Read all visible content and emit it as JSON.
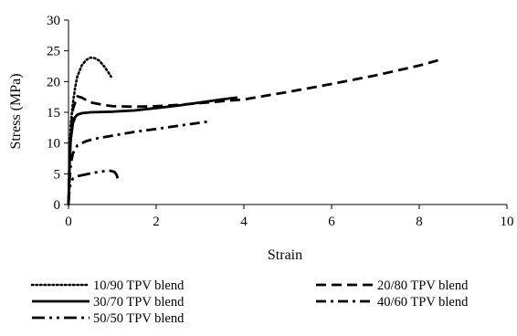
{
  "chart_data": {
    "type": "line",
    "xlabel": "Strain",
    "ylabel": "Stress (MPa)",
    "xlim": [
      0,
      10
    ],
    "ylim": [
      0,
      30
    ],
    "xticks": [
      0,
      2,
      4,
      6,
      8,
      10
    ],
    "yticks": [
      0,
      5,
      10,
      15,
      20,
      25,
      30
    ],
    "grid": false,
    "legend_position": "bottom",
    "series": [
      {
        "name": "10/90 TPV blend",
        "style": "dotted",
        "x": [
          0,
          0.02,
          0.05,
          0.1,
          0.15,
          0.2,
          0.3,
          0.4,
          0.5,
          0.6,
          0.7,
          0.8,
          0.9,
          0.97
        ],
        "y": [
          0,
          8,
          13,
          16.5,
          19,
          20.8,
          22.6,
          23.5,
          23.9,
          23.8,
          23.4,
          22.6,
          21.6,
          20.8
        ]
      },
      {
        "name": "20/80 TPV blend",
        "style": "dashed",
        "x": [
          0,
          0.02,
          0.05,
          0.1,
          0.2,
          0.3,
          0.5,
          0.8,
          1.0,
          1.5,
          2.0,
          2.5,
          3.0,
          3.5,
          4.0,
          5.0,
          6.0,
          7.0,
          8.0,
          8.5
        ],
        "y": [
          0,
          6,
          11,
          15.5,
          17.6,
          17.4,
          16.6,
          16.2,
          16.0,
          15.9,
          16.0,
          16.2,
          16.5,
          16.8,
          17.1,
          18.3,
          19.6,
          21.0,
          22.6,
          23.6
        ]
      },
      {
        "name": "30/70 TPV blend",
        "style": "solid",
        "x": [
          0,
          0.02,
          0.05,
          0.1,
          0.15,
          0.2,
          0.3,
          0.5,
          1.0,
          1.5,
          2.0,
          2.5,
          3.0,
          3.5,
          3.85
        ],
        "y": [
          0,
          6,
          10.5,
          13.2,
          14.2,
          14.6,
          14.85,
          15.0,
          15.1,
          15.3,
          15.7,
          16.1,
          16.6,
          17.1,
          17.4
        ]
      },
      {
        "name": "40/60 TPV blend",
        "style": "dash-dot",
        "x": [
          0,
          0.02,
          0.05,
          0.1,
          0.2,
          0.4,
          0.6,
          1.0,
          1.5,
          2.0,
          2.5,
          3.0,
          3.2
        ],
        "y": [
          0,
          3.5,
          6.5,
          8.3,
          9.6,
          10.3,
          10.7,
          11.2,
          11.8,
          12.3,
          12.8,
          13.3,
          13.5
        ]
      },
      {
        "name": "50/50 TPV blend",
        "style": "dash-dot-dot",
        "x": [
          0,
          0.01,
          0.03,
          0.05,
          0.1,
          0.2,
          0.4,
          0.6,
          0.8,
          0.95,
          1.05,
          1.1,
          1.12,
          1.15
        ],
        "y": [
          0,
          1.5,
          2.8,
          3.5,
          4.2,
          4.6,
          4.9,
          5.2,
          5.4,
          5.5,
          5.3,
          4.8,
          4.2,
          3.7
        ]
      }
    ]
  }
}
